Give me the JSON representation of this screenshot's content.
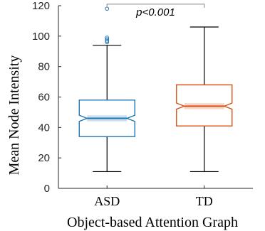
{
  "chart_data": {
    "type": "boxplot",
    "title": "",
    "xlabel": "Object-based Attention Graph",
    "ylabel": "Mean Node Intensity",
    "ylim": [
      0,
      120
    ],
    "yticks": [
      0,
      20,
      40,
      60,
      80,
      100,
      120
    ],
    "grid": false,
    "notched": true,
    "categories": [
      "ASD",
      "TD"
    ],
    "series": [
      {
        "category": "ASD",
        "color": "#1f77b4",
        "whisker_low": 11,
        "q1": 34,
        "median": 46,
        "q3": 58,
        "whisker_high": 94,
        "notch_low": 44,
        "notch_high": 48,
        "outliers": [
          96,
          97,
          98,
          99,
          118
        ]
      },
      {
        "category": "TD",
        "color": "#d95319",
        "whisker_low": 11,
        "q1": 41,
        "median": 54,
        "q3": 68,
        "whisker_high": 106,
        "notch_low": 52,
        "notch_high": 56,
        "outliers": []
      }
    ],
    "annotation": {
      "text": "p<0.001",
      "y": 121
    }
  }
}
